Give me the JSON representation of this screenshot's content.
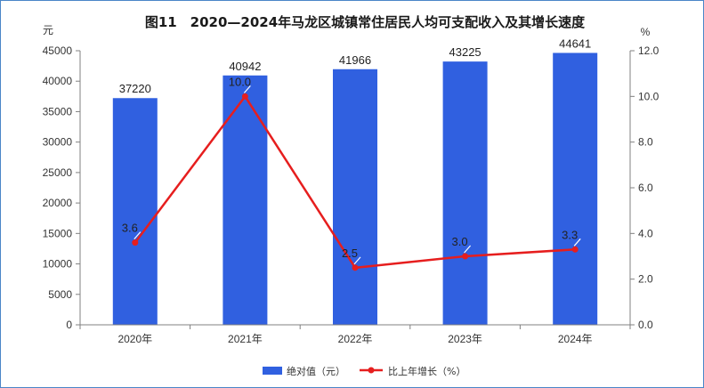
{
  "chart_data": {
    "type": "bar",
    "title": "图11　2020—2024年马龙区城镇常住居民人均可支配收入及其增长速度",
    "categories": [
      "2020年",
      "2021年",
      "2022年",
      "2023年",
      "2024年"
    ],
    "series": [
      {
        "name": "绝对值（元）",
        "type": "bar",
        "axis": "left",
        "values": [
          37220,
          40942,
          41966,
          43225,
          44641
        ],
        "color": "#3060e0"
      },
      {
        "name": "比上年增长（%）",
        "type": "line",
        "axis": "right",
        "values": [
          3.6,
          10.0,
          2.5,
          3.0,
          3.3
        ],
        "color": "#e61e1e"
      }
    ],
    "y_left": {
      "unit": "元",
      "range": [
        0,
        45000
      ],
      "ticks": [
        "0",
        "5000",
        "10000",
        "15000",
        "20000",
        "25000",
        "30000",
        "35000",
        "40000",
        "45000"
      ]
    },
    "y_right": {
      "unit": "%",
      "range": [
        0,
        12
      ],
      "ticks": [
        "0.0",
        "2.0",
        "4.0",
        "6.0",
        "8.0",
        "10.0",
        "12.0"
      ]
    },
    "bar_labels": [
      "37220",
      "40942",
      "41966",
      "43225",
      "44641"
    ],
    "line_labels": [
      "3.6",
      "10.0",
      "2.5",
      "3.0",
      "3.3"
    ],
    "grid": false,
    "legend": "bottom-center",
    "colors": {
      "border": "#4a86c8",
      "axis": "#808080"
    }
  }
}
